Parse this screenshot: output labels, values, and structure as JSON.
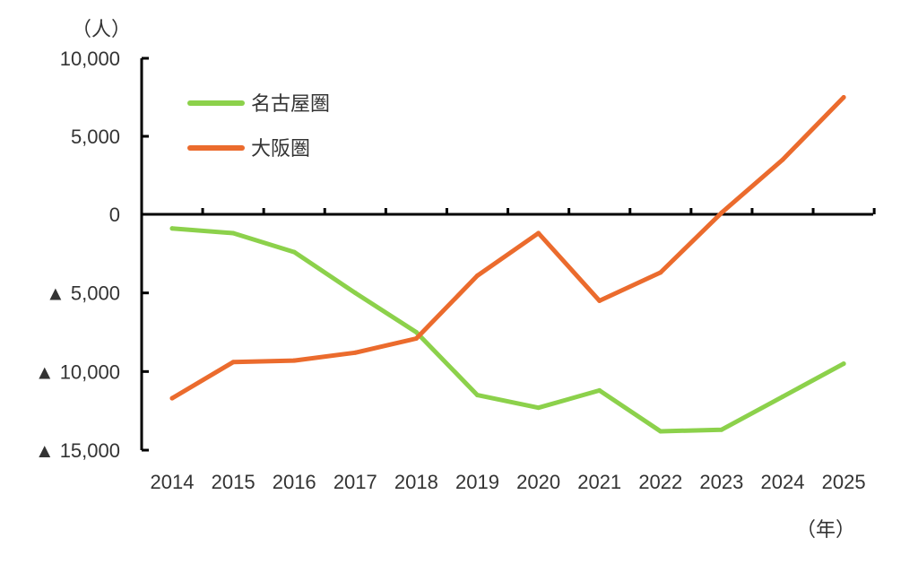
{
  "chart_data": {
    "type": "line",
    "y_unit_label": "（人）",
    "x_unit_label": "（年）",
    "categories": [
      "2014",
      "2015",
      "2016",
      "2017",
      "2018",
      "2019",
      "2020",
      "2021",
      "2022",
      "2023",
      "2024",
      "2025"
    ],
    "ylim": [
      -15000,
      10000
    ],
    "y_ticks": [
      {
        "value": 10000,
        "label": "10,000"
      },
      {
        "value": 5000,
        "label": "5,000"
      },
      {
        "value": 0,
        "label": "0"
      },
      {
        "value": -5000,
        "label": "▲ 5,000"
      },
      {
        "value": -10000,
        "label": "▲ 10,000"
      },
      {
        "value": -15000,
        "label": "▲ 15,000"
      }
    ],
    "series": [
      {
        "name": "名古屋圏",
        "color": "#8cd14b",
        "values": [
          -900,
          -1200,
          -2400,
          -5000,
          -7500,
          -11500,
          -12300,
          -11200,
          -13800,
          -13700,
          -11600,
          -9500
        ]
      },
      {
        "name": "大阪圏",
        "color": "#eb6b2d",
        "values": [
          -11700,
          -9400,
          -9300,
          -8800,
          -7900,
          -3900,
          -1200,
          -5500,
          -3700,
          100,
          3500,
          7500
        ]
      }
    ],
    "legend_position": "top-left",
    "grid": false
  }
}
